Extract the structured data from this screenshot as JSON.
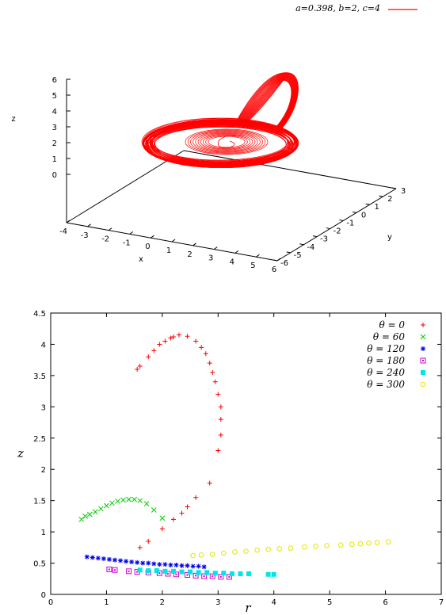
{
  "chart_data": [
    {
      "type": "line3d",
      "legend": "a=0.398, b=2, c=4",
      "color": "#ff0000",
      "xlabel": "x",
      "ylabel": "y",
      "zlabel": "z",
      "xlim": [
        -4,
        6
      ],
      "ylim": [
        -6,
        3
      ],
      "zlim": [
        0,
        6
      ],
      "x_ticks": [
        "-4",
        "-3",
        "-2",
        "-1",
        "0",
        "1",
        "2",
        "3",
        "4",
        "5",
        "6"
      ],
      "y_ticks": [
        "-6",
        "-5",
        "-4",
        "-3",
        "-2",
        "-1",
        "0",
        "1",
        "2",
        "3"
      ],
      "z_ticks": [
        "0",
        "1",
        "2",
        "3",
        "4",
        "5",
        "6"
      ]
    },
    {
      "type": "scatter",
      "xlabel": "r",
      "ylabel": "z",
      "xlim": [
        0,
        7
      ],
      "ylim": [
        0,
        4.5
      ],
      "x_ticks": [
        "0",
        "1",
        "2",
        "3",
        "4",
        "5",
        "6",
        "7"
      ],
      "y_ticks": [
        "0",
        "0.5",
        "1",
        "1.5",
        "2",
        "2.5",
        "3",
        "3.5",
        "4",
        "4.5"
      ],
      "legend_position": "top-right",
      "series": [
        {
          "name": "θ = 0",
          "color": "#ff0000",
          "marker": "plus",
          "points": [
            [
              1.55,
              3.6
            ],
            [
              1.6,
              3.65
            ],
            [
              1.75,
              3.8
            ],
            [
              1.85,
              3.9
            ],
            [
              1.95,
              4.0
            ],
            [
              2.05,
              4.05
            ],
            [
              2.15,
              4.1
            ],
            [
              2.2,
              4.12
            ],
            [
              2.3,
              4.15
            ],
            [
              2.45,
              4.13
            ],
            [
              2.6,
              4.05
            ],
            [
              2.7,
              3.95
            ],
            [
              2.78,
              3.85
            ],
            [
              2.85,
              3.7
            ],
            [
              2.9,
              3.55
            ],
            [
              2.95,
              3.4
            ],
            [
              3.0,
              3.2
            ],
            [
              3.05,
              3.0
            ],
            [
              3.05,
              2.8
            ],
            [
              3.05,
              2.55
            ],
            [
              3.0,
              2.3
            ],
            [
              2.85,
              1.78
            ],
            [
              2.6,
              1.55
            ],
            [
              2.45,
              1.4
            ],
            [
              2.35,
              1.3
            ],
            [
              2.2,
              1.2
            ],
            [
              2.0,
              1.05
            ],
            [
              1.75,
              0.85
            ],
            [
              1.6,
              0.75
            ]
          ]
        },
        {
          "name": "θ = 60",
          "color": "#00cc00",
          "marker": "x",
          "points": [
            [
              0.55,
              1.2
            ],
            [
              0.62,
              1.25
            ],
            [
              0.7,
              1.28
            ],
            [
              0.8,
              1.32
            ],
            [
              0.9,
              1.37
            ],
            [
              1.0,
              1.42
            ],
            [
              1.1,
              1.46
            ],
            [
              1.2,
              1.49
            ],
            [
              1.3,
              1.51
            ],
            [
              1.4,
              1.52
            ],
            [
              1.5,
              1.52
            ],
            [
              1.6,
              1.5
            ],
            [
              1.72,
              1.45
            ],
            [
              1.85,
              1.35
            ],
            [
              2.0,
              1.22
            ]
          ]
        },
        {
          "name": "θ = 120",
          "color": "#0000ee",
          "marker": "star",
          "points": [
            [
              0.65,
              0.6
            ],
            [
              0.75,
              0.59
            ],
            [
              0.85,
              0.58
            ],
            [
              0.95,
              0.57
            ],
            [
              1.05,
              0.56
            ],
            [
              1.15,
              0.55
            ],
            [
              1.25,
              0.54
            ],
            [
              1.35,
              0.53
            ],
            [
              1.45,
              0.52
            ],
            [
              1.55,
              0.51
            ],
            [
              1.65,
              0.5
            ],
            [
              1.75,
              0.5
            ],
            [
              1.85,
              0.49
            ],
            [
              1.95,
              0.48
            ],
            [
              2.05,
              0.48
            ],
            [
              2.15,
              0.47
            ],
            [
              2.25,
              0.47
            ],
            [
              2.35,
              0.46
            ],
            [
              2.45,
              0.46
            ],
            [
              2.55,
              0.45
            ],
            [
              2.65,
              0.45
            ],
            [
              2.75,
              0.44
            ]
          ]
        },
        {
          "name": "θ = 180",
          "color": "#cc00cc",
          "marker": "boxdot",
          "points": [
            [
              1.05,
              0.4
            ],
            [
              1.15,
              0.39
            ],
            [
              1.4,
              0.37
            ],
            [
              1.55,
              0.36
            ],
            [
              1.75,
              0.35
            ],
            [
              1.95,
              0.34
            ],
            [
              2.1,
              0.33
            ],
            [
              2.25,
              0.32
            ],
            [
              2.45,
              0.31
            ],
            [
              2.6,
              0.3
            ],
            [
              2.75,
              0.29
            ],
            [
              2.9,
              0.29
            ],
            [
              3.05,
              0.28
            ],
            [
              3.2,
              0.28
            ]
          ]
        },
        {
          "name": "θ = 240",
          "color": "#00e5e5",
          "marker": "boxfill",
          "points": [
            [
              1.6,
              0.39
            ],
            [
              1.75,
              0.38
            ],
            [
              1.9,
              0.38
            ],
            [
              2.05,
              0.37
            ],
            [
              2.2,
              0.37
            ],
            [
              2.35,
              0.36
            ],
            [
              2.5,
              0.36
            ],
            [
              2.65,
              0.35
            ],
            [
              2.8,
              0.35
            ],
            [
              2.95,
              0.34
            ],
            [
              3.1,
              0.34
            ],
            [
              3.25,
              0.33
            ],
            [
              3.4,
              0.33
            ],
            [
              3.55,
              0.33
            ],
            [
              3.9,
              0.32
            ],
            [
              4.0,
              0.32
            ]
          ]
        },
        {
          "name": "θ = 300",
          "color": "#e5e500",
          "marker": "circle",
          "points": [
            [
              2.55,
              0.62
            ],
            [
              2.7,
              0.63
            ],
            [
              2.9,
              0.64
            ],
            [
              3.1,
              0.66
            ],
            [
              3.3,
              0.68
            ],
            [
              3.5,
              0.69
            ],
            [
              3.7,
              0.71
            ],
            [
              3.9,
              0.72
            ],
            [
              4.1,
              0.73
            ],
            [
              4.3,
              0.74
            ],
            [
              4.55,
              0.76
            ],
            [
              4.75,
              0.77
            ],
            [
              4.95,
              0.78
            ],
            [
              5.2,
              0.79
            ],
            [
              5.4,
              0.8
            ],
            [
              5.55,
              0.81
            ],
            [
              5.7,
              0.82
            ],
            [
              5.85,
              0.83
            ],
            [
              6.05,
              0.84
            ]
          ]
        }
      ]
    }
  ]
}
